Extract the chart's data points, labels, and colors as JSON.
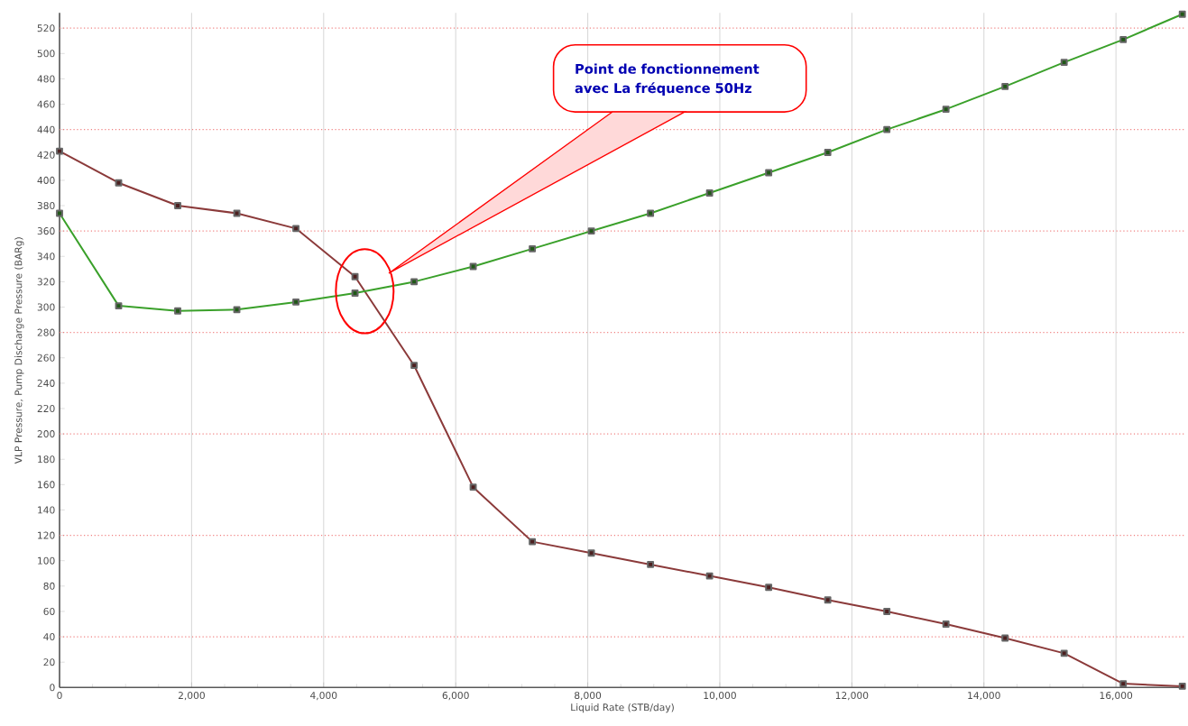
{
  "chart_data": {
    "type": "line",
    "xlabel": "Liquid Rate  (STB/day)",
    "ylabel": "VLP Pressure, Pump Discharge Pressure  (BARg)",
    "x": [
      0,
      895,
      1790,
      2685,
      3580,
      4475,
      5370,
      6265,
      7160,
      8055,
      8950,
      9845,
      10740,
      11635,
      12530,
      13425,
      14320,
      15215,
      16110,
      17005
    ],
    "series": [
      {
        "color": "#8b3a3a",
        "values": [
          423,
          398,
          380,
          374,
          362,
          324,
          254,
          158,
          115,
          106,
          97,
          88,
          79,
          69,
          60,
          50,
          39,
          27,
          3,
          1
        ]
      },
      {
        "color": "#3aa02a",
        "values": [
          374,
          301,
          297,
          298,
          304,
          311,
          320,
          332,
          346,
          360,
          374,
          390,
          406,
          422,
          440,
          456,
          474,
          493,
          511,
          531
        ]
      }
    ],
    "xlim": [
      0,
      17050
    ],
    "ylim": [
      0,
      532
    ],
    "xticks": [
      0,
      {
        "value": 2000,
        "label": "2,000"
      },
      {
        "value": 4000,
        "label": "4,000"
      },
      {
        "value": 6000,
        "label": "6,000"
      },
      {
        "value": 8000,
        "label": "8,000"
      },
      {
        "value": 10000,
        "label": "10,000"
      },
      {
        "value": 12000,
        "label": "12,000"
      },
      {
        "value": 14000,
        "label": "14,000"
      },
      {
        "value": 16000,
        "label": "16,000"
      }
    ],
    "yticks": [
      0,
      20,
      40,
      60,
      80,
      100,
      120,
      140,
      160,
      180,
      200,
      220,
      240,
      260,
      280,
      300,
      320,
      340,
      360,
      380,
      400,
      420,
      440,
      460,
      480,
      500,
      520
    ],
    "grid": "x",
    "marker": "square",
    "line_style": "solid",
    "legend": false,
    "ref_lines": [
      {
        "axis": "y",
        "value": 40,
        "color": "#f08080",
        "line_style": "dotted"
      },
      {
        "axis": "y",
        "value": 120,
        "color": "#f08080",
        "line_style": "dotted"
      },
      {
        "axis": "y",
        "value": 200,
        "color": "#f08080",
        "line_style": "dotted"
      },
      {
        "axis": "y",
        "value": 280,
        "color": "#f08080",
        "line_style": "dotted"
      },
      {
        "axis": "y",
        "value": 360,
        "color": "#f08080",
        "line_style": "dotted"
      },
      {
        "axis": "y",
        "value": 440,
        "color": "#f08080",
        "line_style": "dotted"
      },
      {
        "axis": "y",
        "value": 520,
        "color": "#f08080",
        "line_style": "dotted"
      }
    ],
    "annotations": [
      "Point de fonctionnement avec La fréquence 50Hz"
    ]
  }
}
